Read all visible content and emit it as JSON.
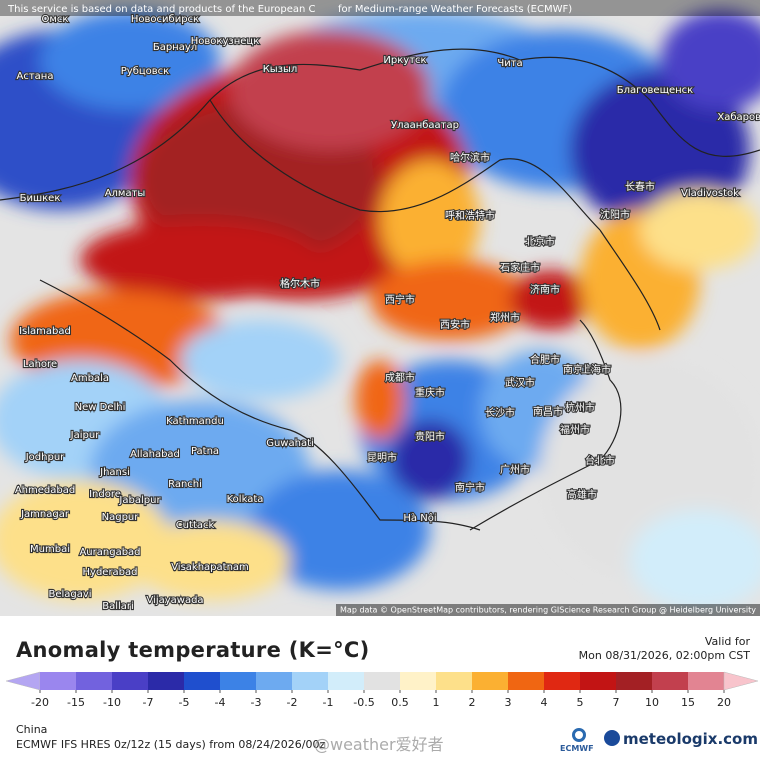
{
  "header": {
    "notice_left": "This service is based on data and products of the European C",
    "notice_right": "for Medium-range Weather Forecasts (ECMWF)",
    "map_credit": "Map data © OpenStreetMap contributors, rendering GIScience Research Group @ Heidelberg University"
  },
  "cities": [
    "Омск",
    "Новосибирск",
    "Барнаул",
    "Новокузнецк",
    "Астана",
    "Рубцовск",
    "Кызыл",
    "Иркутск",
    "Чита",
    "Улаанбаатар",
    "Благовещенск",
    "Хабаровск",
    "Бишкек",
    "Алматы",
    "哈尔滨市",
    "长春市",
    "沈阳市",
    "Vladivostok",
    "呼和浩特市",
    "北京市",
    "石家庄市",
    "济南市",
    "格尔木市",
    "西宁市",
    "郑州市",
    "西安市",
    "成都市",
    "重庆市",
    "武汉市",
    "合肥市",
    "南京市",
    "上海市",
    "长沙市",
    "南昌市",
    "杭州市",
    "贵阳市",
    "昆明市",
    "南宁市",
    "广州市",
    "福州市",
    "台北市",
    "高雄市",
    "Hà Nội",
    "Islamabad",
    "Lahore",
    "Ambala",
    "New Delhi",
    "Kathmandu",
    "Guwahati",
    "Jaipur",
    "Jodhpur",
    "Allahabad",
    "Patna",
    "Jhansi",
    "Ranchi",
    "Ahmedabad",
    "Indore",
    "Jabalpur",
    "Kolkata",
    "Jamnagar",
    "Nagpur",
    "Cuttack",
    "Mumbai",
    "Aurangabad",
    "Hyderabad",
    "Visakhapatnam",
    "Belagavi",
    "Vijayawada",
    "Ballari"
  ],
  "footer": {
    "title": "Anomaly temperature (K=°C)",
    "valid_label": "Valid for",
    "valid_time": "Mon 08/31/2026, 02:00pm CST",
    "region": "China",
    "model": "ECMWF IFS HRES 0z/12z (15 days) from 08/24/2026/00z",
    "watermark": "@weather爱好者",
    "logo_ecmwf": "ECMWF",
    "logo_meteologix": "meteologix.com"
  },
  "legend": {
    "ticks": [
      -20,
      -15,
      -10,
      -7,
      -5,
      -4,
      -3,
      -2,
      -1,
      -0.5,
      0.5,
      1,
      2,
      3,
      4,
      5,
      7,
      10,
      15,
      20
    ],
    "colors": [
      "#b4a6f2",
      "#9a86ee",
      "#7262de",
      "#4a3fc6",
      "#2b2aa8",
      "#1f4fce",
      "#3c82e6",
      "#6daaf0",
      "#a3d2f8",
      "#d2edfa",
      "#e2e2e2",
      "#fff2c8",
      "#fde08a",
      "#fbb032",
      "#f06612",
      "#e02812",
      "#c21414",
      "#a32024",
      "#c2404e",
      "#e28492",
      "#f8c4cc"
    ]
  }
}
